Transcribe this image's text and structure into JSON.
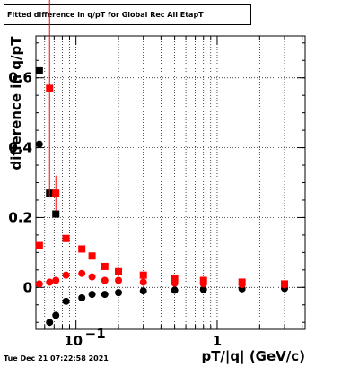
{
  "title": "Fitted difference in q/pT for Global Rec All EtapT",
  "timestamp": "Tue Dec 21 07:22:58 2021",
  "chart_data": {
    "type": "scatter",
    "title": "Fitted difference in q/pT for Global Rec All EtapT",
    "xlabel": "pT/|q| (GeV/c)",
    "ylabel": "difference in q/pT",
    "xscale": "log",
    "xlim": [
      0.052,
      4.2
    ],
    "ylim": [
      -0.12,
      0.72
    ],
    "grid": true,
    "x_tick_labels": [
      {
        "value": 0.1,
        "base": "10",
        "exp": "−1"
      },
      {
        "value": 1,
        "label": "1"
      }
    ],
    "y_ticks": [
      0,
      0.2,
      0.4,
      0.6
    ],
    "y_tick_labels": [
      "0",
      "0.2",
      "0.4",
      "0.6",
      "0.6",
      "0.4",
      "0.2",
      "0"
    ],
    "series": [
      {
        "color": "#000000",
        "marker": "square",
        "x": [
          0.055,
          0.065,
          0.072
        ],
        "y": [
          0.62,
          0.27,
          0.21
        ],
        "yerr": [
          0.0,
          0.0,
          0.0
        ]
      },
      {
        "color": "#000000",
        "marker": "circle",
        "x": [
          0.055,
          0.065,
          0.072,
          0.085,
          0.11,
          0.13,
          0.16,
          0.2,
          0.3,
          0.5,
          0.8,
          1.5,
          3.0
        ],
        "y": [
          0.41,
          -0.1,
          -0.08,
          -0.04,
          -0.03,
          -0.02,
          -0.02,
          -0.015,
          -0.01,
          -0.008,
          -0.006,
          -0.004,
          -0.003
        ],
        "yerr": [
          0,
          0,
          0,
          0,
          0,
          0,
          0,
          0,
          0,
          0,
          0,
          0,
          0
        ]
      },
      {
        "color": "#ff0000",
        "marker": "square",
        "x": [
          0.055,
          0.065,
          0.072,
          0.085,
          0.11,
          0.13,
          0.16,
          0.2,
          0.3,
          0.5,
          0.8,
          1.5,
          3.0
        ],
        "y": [
          0.12,
          0.57,
          0.27,
          0.14,
          0.11,
          0.09,
          0.06,
          0.045,
          0.035,
          0.025,
          0.02,
          0.015,
          0.01
        ],
        "yerr": [
          0,
          0.31,
          0.05,
          0.01,
          0.01,
          0.005,
          0.005,
          0,
          0,
          0,
          0,
          0,
          0
        ]
      },
      {
        "color": "#ff0000",
        "marker": "circle",
        "x": [
          0.055,
          0.065,
          0.072,
          0.085,
          0.11,
          0.13,
          0.16,
          0.2,
          0.3,
          0.5,
          0.8,
          1.5,
          3.0
        ],
        "y": [
          0.01,
          0.015,
          0.02,
          0.035,
          0.04,
          0.03,
          0.02,
          0.02,
          0.015,
          0.012,
          0.01,
          0.008,
          0.007
        ],
        "yerr": [
          0,
          0,
          0,
          0,
          0,
          0,
          0,
          0,
          0,
          0,
          0,
          0,
          0
        ]
      }
    ]
  }
}
